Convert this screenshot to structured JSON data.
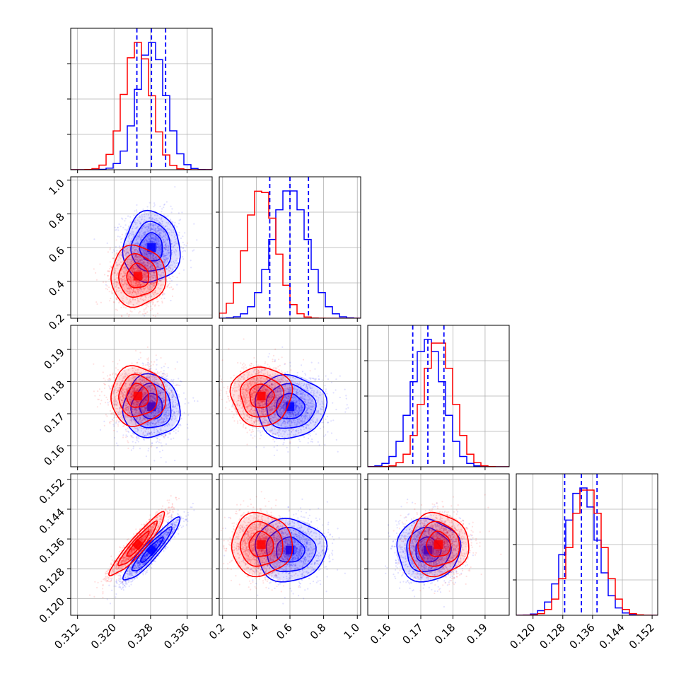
{
  "figure": {
    "type": "corner-plot"
  },
  "colors": {
    "series_a": "#0000ff",
    "series_b": "#ff0000",
    "axis": "#000000",
    "grid": "#b0b0b0"
  },
  "chart_data": {
    "type": "corner",
    "grid": true,
    "series": [
      {
        "color": "#0000ff",
        "means": [
          0.3282,
          0.6,
          0.1722,
          0.133
        ],
        "sigmas": [
          0.0031,
          0.105,
          0.0049,
          0.0042
        ]
      },
      {
        "color": "#ff0000",
        "means": [
          0.3252,
          0.43,
          0.1755,
          0.1345
        ],
        "sigmas": [
          0.003,
          0.09,
          0.0046,
          0.0042
        ]
      }
    ],
    "correlations": [
      {
        "pair": [
          0,
          3
        ],
        "value": 0.93
      }
    ],
    "quantile_lines": [
      [
        0.325,
        0.3282,
        0.3313
      ],
      [
        0.48,
        0.6,
        0.71
      ],
      [
        0.1675,
        0.1722,
        0.1772
      ],
      [
        0.1285,
        0.133,
        0.1372
      ]
    ],
    "parameters": [
      {
        "range": [
          0.3105,
          0.3415
        ],
        "ticks": [
          "0.312",
          "0.320",
          "0.328",
          "0.336"
        ]
      },
      {
        "range": [
          0.18,
          1.02
        ],
        "ticks": [
          "0.2",
          "0.4",
          "0.6",
          "0.8",
          "1.0"
        ]
      },
      {
        "range": [
          0.1535,
          0.1975
        ],
        "ticks": [
          "0.16",
          "0.17",
          "0.18",
          "0.19"
        ]
      },
      {
        "range": [
          0.1155,
          0.1535
        ],
        "ticks": [
          "0.120",
          "0.128",
          "0.136",
          "0.144",
          "0.152"
        ]
      }
    ]
  }
}
